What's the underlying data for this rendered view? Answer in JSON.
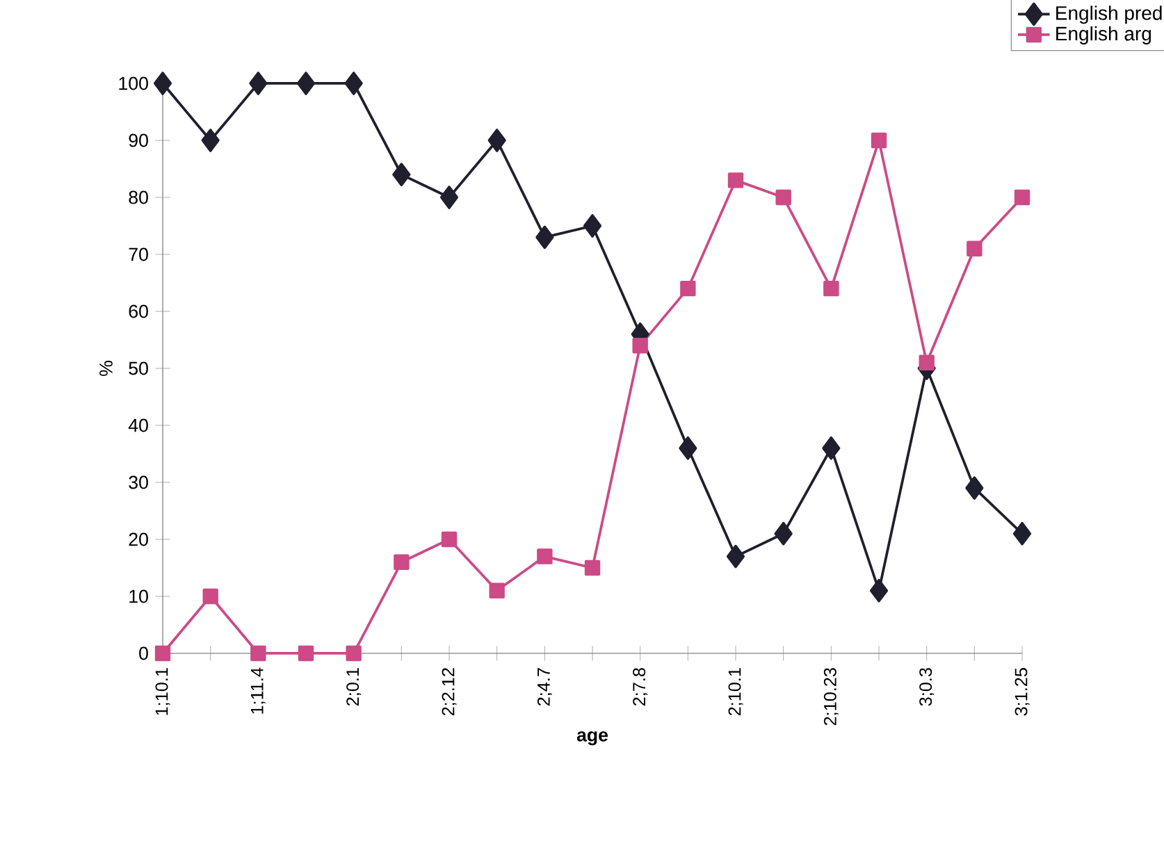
{
  "chart_data": {
    "type": "line",
    "xlabel": "age",
    "ylabel": "%",
    "categories": [
      "1;10.1",
      null,
      "1;11.4",
      null,
      "2;0.1",
      null,
      "2;2.12",
      null,
      "2;4.7",
      null,
      "2;7.8",
      null,
      "2;10.1",
      null,
      "2;10.23",
      null,
      "3;0.3",
      null,
      "3;1.25"
    ],
    "series": [
      {
        "name": "English pred",
        "color": "#1f1f2e",
        "marker": "diamond",
        "values": [
          100,
          90,
          100,
          100,
          100,
          84,
          80,
          90,
          73,
          75,
          56,
          36,
          17,
          21,
          36,
          11,
          50,
          29,
          21
        ]
      },
      {
        "name": "English arg",
        "color": "#cc4a86",
        "marker": "square",
        "values": [
          0,
          10,
          0,
          0,
          0,
          16,
          20,
          11,
          17,
          15,
          54,
          64,
          83,
          80,
          64,
          90,
          51,
          71,
          80
        ]
      }
    ],
    "ylim": [
      0,
      100
    ],
    "yticks": [
      0,
      10,
      20,
      30,
      40,
      50,
      60,
      70,
      80,
      90,
      100
    ],
    "grid": false,
    "legend": "top right",
    "line_style": "solid"
  }
}
